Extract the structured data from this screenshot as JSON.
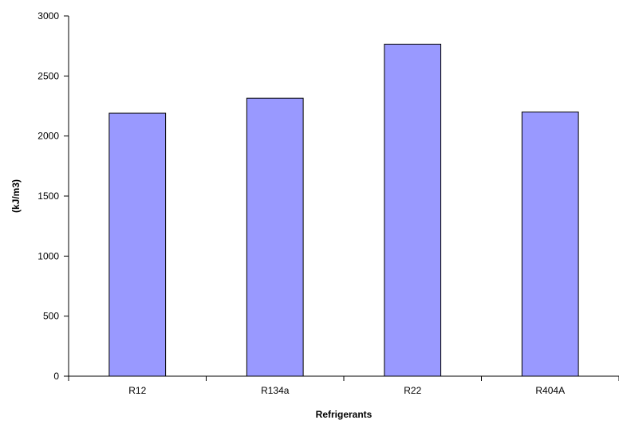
{
  "chart_data": {
    "type": "bar",
    "categories": [
      "R12",
      "R134a",
      "R22",
      "R404A"
    ],
    "values": [
      2190,
      2315,
      2765,
      2200
    ],
    "title": "",
    "xlabel": "Refrigerants",
    "ylabel": "(kJ/m3)",
    "ylim": [
      0,
      3000
    ],
    "yticks": [
      0,
      500,
      1000,
      1500,
      2000,
      2500,
      3000
    ],
    "grid": false,
    "legend": "none",
    "bar_color": "#9999ff",
    "bar_edge_color": "#000000"
  }
}
